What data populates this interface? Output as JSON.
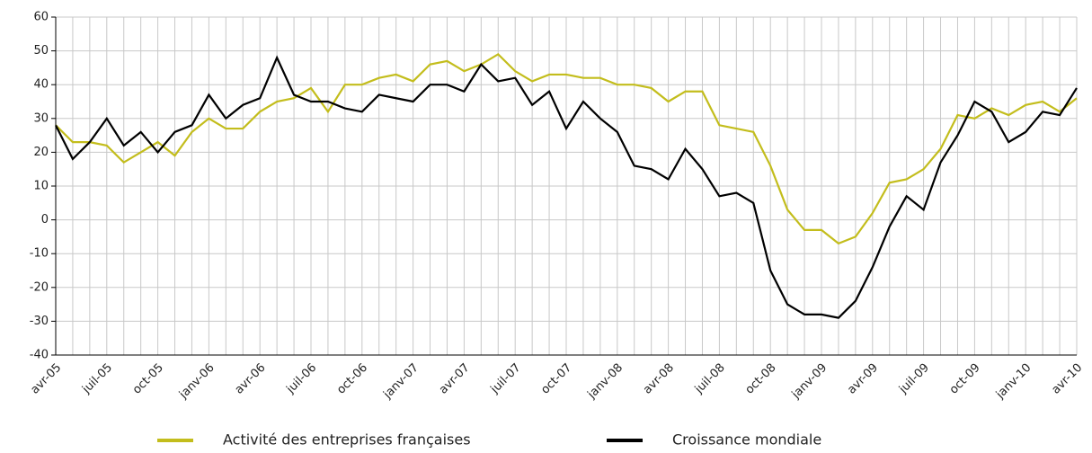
{
  "chart_data": {
    "type": "line",
    "categories": [
      "avr-05",
      null,
      null,
      "juil-05",
      null,
      null,
      "oct-05",
      null,
      null,
      "janv-06",
      null,
      null,
      "avr-06",
      null,
      null,
      "juil-06",
      null,
      null,
      "oct-06",
      null,
      null,
      "janv-07",
      null,
      null,
      "avr-07",
      null,
      null,
      "juil-07",
      null,
      null,
      "oct-07",
      null,
      null,
      "janv-08",
      null,
      null,
      "avr-08",
      null,
      null,
      "juil-08",
      null,
      null,
      "oct-08",
      null,
      null,
      "janv-09",
      null,
      null,
      "avr-09",
      null,
      null,
      "juil-09",
      null,
      null,
      "oct-09",
      null,
      null,
      "janv-10",
      null,
      null,
      "avr-10"
    ],
    "series": [
      {
        "name": "Activité des entreprises françaises",
        "color": "#c3bd1c",
        "values": [
          28,
          23,
          23,
          22,
          17,
          20,
          23,
          19,
          26,
          30,
          27,
          27,
          32,
          35,
          36,
          39,
          32,
          40,
          40,
          42,
          43,
          41,
          46,
          47,
          44,
          46,
          49,
          44,
          41,
          43,
          43,
          42,
          42,
          40,
          40,
          39,
          35,
          38,
          38,
          28,
          27,
          26,
          16,
          3,
          -3,
          -3,
          -7,
          -5,
          2,
          11,
          12,
          15,
          21,
          31,
          30,
          33,
          31,
          34,
          35,
          32,
          36
        ]
      },
      {
        "name": "Croissance mondiale",
        "color": "#000000",
        "values": [
          28,
          18,
          23,
          30,
          22,
          26,
          20,
          26,
          28,
          37,
          30,
          34,
          36,
          48,
          37,
          35,
          35,
          33,
          32,
          37,
          36,
          35,
          40,
          40,
          38,
          46,
          41,
          42,
          34,
          38,
          27,
          35,
          30,
          26,
          16,
          15,
          12,
          21,
          15,
          7,
          8,
          5,
          -15,
          -25,
          -28,
          -28,
          -29,
          -24,
          -14,
          -2,
          7,
          3,
          17,
          25,
          35,
          32,
          23,
          26,
          32,
          31,
          39
        ]
      }
    ],
    "ylim": [
      -40,
      60
    ],
    "yticks": [
      -40,
      -30,
      -20,
      -10,
      0,
      10,
      20,
      30,
      40,
      50,
      60
    ],
    "grid": true
  }
}
